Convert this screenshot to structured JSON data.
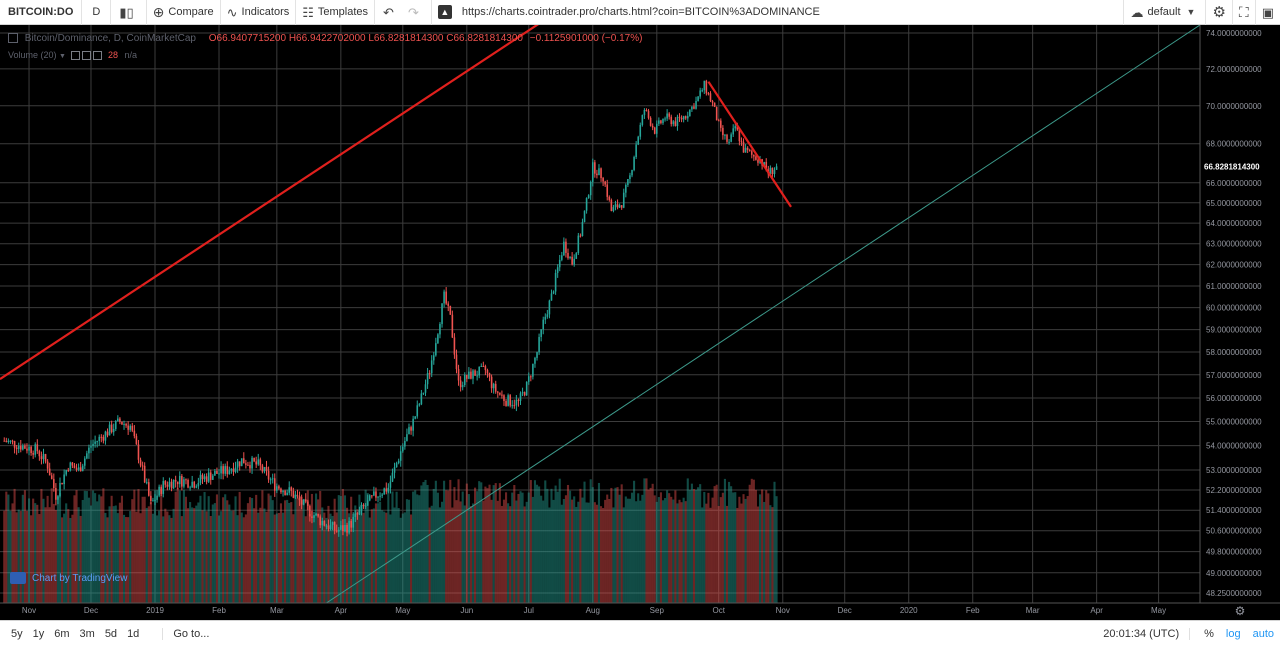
{
  "toolbar": {
    "symbol": "BITCOIN:DO",
    "interval": "D",
    "compare_label": "Compare",
    "indicators_label": "Indicators",
    "templates_label": "Templates",
    "url": "https://charts.cointrader.pro/charts.html?coin=BITCOIN%3ADOMINANCE",
    "layout_label": "default"
  },
  "legend": {
    "title": "Bitcoin/Dominance, D, CoinMarketCap",
    "open": "O66.9407715200",
    "high": "H66.9422702000",
    "low": "L66.8281814300",
    "close": "C66.8281814300",
    "change": "−0.1125901000 (−0.17%)",
    "volume_label": "Volume (20)",
    "volume_value": "28",
    "volume_na": "n/a"
  },
  "attribution": "Chart by TradingView",
  "bottom": {
    "ranges": [
      "5y",
      "1y",
      "6m",
      "3m",
      "5d",
      "1d"
    ],
    "goto_label": "Go to...",
    "time": "20:01:34 (UTC)",
    "percent": "%",
    "log": "log",
    "auto": "auto"
  },
  "colors": {
    "up": "#26a69a",
    "down": "#ef5350",
    "trendline": "#e0201d",
    "channel": "#3d9a8b",
    "grid": "#3c3c3c",
    "background": "#000000"
  },
  "chart_data": {
    "type": "candlestick",
    "title": "Bitcoin/Dominance, D, CoinMarketCap",
    "scale": "log",
    "grid": true,
    "y_axis_labels": [
      "74.0000000000",
      "72.0000000000",
      "70.0000000000",
      "68.0000000000",
      "66.0000000000",
      "65.0000000000",
      "64.0000000000",
      "63.0000000000",
      "62.0000000000",
      "61.0000000000",
      "60.0000000000",
      "59.0000000000",
      "58.0000000000",
      "57.0000000000",
      "56.0000000000",
      "55.0000000000",
      "54.0000000000",
      "53.0000000000",
      "52.2000000000",
      "51.4000000000",
      "50.6000000000",
      "49.8000000000",
      "49.0000000000",
      "48.2500000000"
    ],
    "last_price": "66.8281814300",
    "x_axis_labels": [
      "Nov",
      "Dec",
      "2019",
      "Feb",
      "Mar",
      "Apr",
      "May",
      "Jun",
      "Jul",
      "Aug",
      "Sep",
      "Oct",
      "Nov",
      "Dec",
      "2020",
      "Feb",
      "Mar",
      "Apr",
      "May"
    ],
    "price_path": [
      {
        "date": "2018-10-20",
        "value": 54.2
      },
      {
        "date": "2018-10-28",
        "value": 54.0
      },
      {
        "date": "2018-11-05",
        "value": 53.8
      },
      {
        "date": "2018-11-10",
        "value": 53.2
      },
      {
        "date": "2018-11-14",
        "value": 52.0
      },
      {
        "date": "2018-11-20",
        "value": 53.2
      },
      {
        "date": "2018-11-25",
        "value": 53.0
      },
      {
        "date": "2018-12-01",
        "value": 54.0
      },
      {
        "date": "2018-12-08",
        "value": 54.5
      },
      {
        "date": "2018-12-15",
        "value": 55.0
      },
      {
        "date": "2018-12-20",
        "value": 54.8
      },
      {
        "date": "2018-12-25",
        "value": 53.3
      },
      {
        "date": "2018-12-30",
        "value": 51.6
      },
      {
        "date": "2019-01-05",
        "value": 52.4
      },
      {
        "date": "2019-01-12",
        "value": 52.6
      },
      {
        "date": "2019-01-20",
        "value": 52.5
      },
      {
        "date": "2019-01-28",
        "value": 52.8
      },
      {
        "date": "2019-02-05",
        "value": 53.0
      },
      {
        "date": "2019-02-12",
        "value": 53.4
      },
      {
        "date": "2019-02-20",
        "value": 53.2
      },
      {
        "date": "2019-02-28",
        "value": 52.4
      },
      {
        "date": "2019-03-08",
        "value": 52.1
      },
      {
        "date": "2019-03-15",
        "value": 51.5
      },
      {
        "date": "2019-03-22",
        "value": 51.0
      },
      {
        "date": "2019-03-30",
        "value": 50.6
      },
      {
        "date": "2019-04-05",
        "value": 50.8
      },
      {
        "date": "2019-04-12",
        "value": 51.5
      },
      {
        "date": "2019-04-18",
        "value": 52.0
      },
      {
        "date": "2019-04-24",
        "value": 52.3
      },
      {
        "date": "2019-05-01",
        "value": 54.0
      },
      {
        "date": "2019-05-06",
        "value": 55.0
      },
      {
        "date": "2019-05-10",
        "value": 56.0
      },
      {
        "date": "2019-05-14",
        "value": 57.2
      },
      {
        "date": "2019-05-18",
        "value": 59.0
      },
      {
        "date": "2019-05-21",
        "value": 60.5
      },
      {
        "date": "2019-05-24",
        "value": 59.5
      },
      {
        "date": "2019-05-28",
        "value": 56.6
      },
      {
        "date": "2019-06-03",
        "value": 57.0
      },
      {
        "date": "2019-06-10",
        "value": 57.2
      },
      {
        "date": "2019-06-14",
        "value": 56.4
      },
      {
        "date": "2019-06-20",
        "value": 55.9
      },
      {
        "date": "2019-06-26",
        "value": 55.8
      },
      {
        "date": "2019-06-30",
        "value": 56.5
      },
      {
        "date": "2019-07-05",
        "value": 58.0
      },
      {
        "date": "2019-07-08",
        "value": 59.3
      },
      {
        "date": "2019-07-12",
        "value": 60.5
      },
      {
        "date": "2019-07-15",
        "value": 61.8
      },
      {
        "date": "2019-07-18",
        "value": 63.0
      },
      {
        "date": "2019-07-22",
        "value": 62.1
      },
      {
        "date": "2019-07-26",
        "value": 63.5
      },
      {
        "date": "2019-07-29",
        "value": 65.0
      },
      {
        "date": "2019-08-01",
        "value": 66.8
      },
      {
        "date": "2019-08-06",
        "value": 66.3
      },
      {
        "date": "2019-08-10",
        "value": 64.6
      },
      {
        "date": "2019-08-15",
        "value": 65.0
      },
      {
        "date": "2019-08-19",
        "value": 66.3
      },
      {
        "date": "2019-08-22",
        "value": 68.0
      },
      {
        "date": "2019-08-26",
        "value": 69.8
      },
      {
        "date": "2019-08-31",
        "value": 68.7
      },
      {
        "date": "2019-09-05",
        "value": 69.4
      },
      {
        "date": "2019-09-10",
        "value": 69.1
      },
      {
        "date": "2019-09-15",
        "value": 69.5
      },
      {
        "date": "2019-09-20",
        "value": 70.2
      },
      {
        "date": "2019-09-24",
        "value": 71.1
      },
      {
        "date": "2019-09-28",
        "value": 70.1
      },
      {
        "date": "2019-10-02",
        "value": 68.6
      },
      {
        "date": "2019-10-06",
        "value": 68.0
      },
      {
        "date": "2019-10-09",
        "value": 68.9
      },
      {
        "date": "2019-10-13",
        "value": 67.7
      },
      {
        "date": "2019-10-17",
        "value": 67.4
      },
      {
        "date": "2019-10-21",
        "value": 67.2
      },
      {
        "date": "2019-10-25",
        "value": 66.5
      },
      {
        "date": "2019-10-29",
        "value": 66.8
      }
    ]
  }
}
